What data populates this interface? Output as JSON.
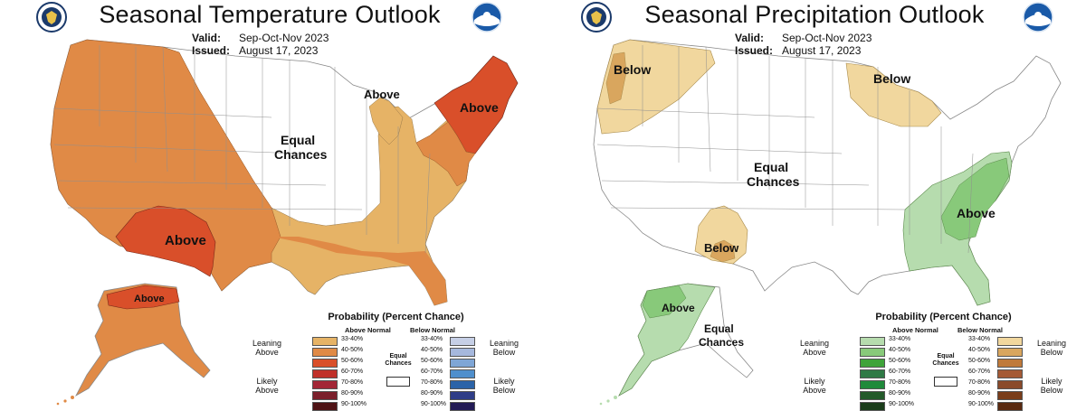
{
  "panels": [
    {
      "id": "temperature",
      "title": "Seasonal Temperature Outlook",
      "valid_label": "Valid:",
      "valid_value": "Sep-Oct-Nov 2023",
      "issued_label": "Issued:",
      "issued_value": "August 17, 2023",
      "regions": [
        {
          "name": "west-above",
          "category": "above-normal",
          "probability": "40-50%"
        },
        {
          "name": "southwest-above",
          "category": "above-normal",
          "probability": "50-60%"
        },
        {
          "name": "northeast-above",
          "category": "above-normal",
          "probability": "50-60%"
        },
        {
          "name": "east-above",
          "category": "above-normal",
          "probability": "33-40%"
        },
        {
          "name": "alaska-above",
          "category": "above-normal",
          "probability": "40-50%"
        }
      ],
      "labels": [
        "Above",
        "Equal\nChances",
        "Above",
        "Above",
        "Above"
      ]
    },
    {
      "id": "precipitation",
      "title": "Seasonal Precipitation Outlook",
      "valid_label": "Valid:",
      "valid_value": "Sep-Oct-Nov 2023",
      "issued_label": "Issued:",
      "issued_value": "August 17, 2023",
      "regions": [
        {
          "name": "northwest-below",
          "category": "below-normal",
          "probability": "33-40%"
        },
        {
          "name": "great-lakes-below",
          "category": "below-normal",
          "probability": "33-40%"
        },
        {
          "name": "southwest-below",
          "category": "below-normal",
          "probability": "33-40%"
        },
        {
          "name": "southeast-above",
          "category": "above-normal",
          "probability": "33-40%"
        },
        {
          "name": "alaska-above",
          "category": "above-normal",
          "probability": "33-40%"
        }
      ]
    }
  ],
  "temperature_labels": {
    "above_sw": "Above",
    "equal_1": "Equal",
    "equal_2": "Chances",
    "above_lakes": "Above",
    "above_ne": "Above",
    "above_ak": "Above"
  },
  "precip_labels": {
    "below_nw": "Below",
    "below_lakes": "Below",
    "equal_1": "Equal",
    "equal_2": "Chances",
    "below_sw": "Below",
    "above_se": "Above",
    "above_ak": "Above",
    "equal_ak_1": "Equal",
    "equal_ak_2": "Chances"
  },
  "temp_legend": {
    "title": "Probability (Percent Chance)",
    "above_head": "Above Normal",
    "below_head": "Below Normal",
    "leaning_above": [
      "Leaning",
      "Above"
    ],
    "likely_above": [
      "Likely",
      "Above"
    ],
    "leaning_below": [
      "Leaning",
      "Below"
    ],
    "likely_below": [
      "Likely",
      "Below"
    ],
    "equal_chances": [
      "Equal",
      "Chances"
    ],
    "percents": [
      "33-40%",
      "40-50%",
      "50-60%",
      "60-70%",
      "70-80%",
      "80-90%",
      "90-100%"
    ],
    "above_colors": [
      "#e6b366",
      "#e08a46",
      "#d94f2a",
      "#c0302a",
      "#a32636",
      "#7b1f2b",
      "#4e1214"
    ],
    "below_colors": [
      "#c6cfe6",
      "#a6b8dd",
      "#7fa6d6",
      "#4f8fcc",
      "#2b63a8",
      "#2f3d87",
      "#221a55"
    ]
  },
  "precip_legend": {
    "title": "Probability (Percent Chance)",
    "above_head": "Above Normal",
    "below_head": "Below Normal",
    "leaning_above": [
      "Leaning",
      "Above"
    ],
    "likely_above": [
      "Likely",
      "Above"
    ],
    "leaning_below": [
      "Leaning",
      "Below"
    ],
    "likely_below": [
      "Likely",
      "Below"
    ],
    "equal_chances": [
      "Equal",
      "Chances"
    ],
    "percents": [
      "33-40%",
      "40-50%",
      "50-60%",
      "60-70%",
      "70-80%",
      "80-90%",
      "90-100%"
    ],
    "above_colors": [
      "#b6dcae",
      "#88c97a",
      "#3fa33a",
      "#2f7a46",
      "#1f8a3a",
      "#235a2a",
      "#1a3d1a"
    ],
    "below_colors": [
      "#f1d79e",
      "#d9a65e",
      "#c07a3a",
      "#a55a35",
      "#8a4a2a",
      "#7a3d1a",
      "#5a2a10"
    ]
  },
  "colors": {
    "temp_33_40": "#e6b366",
    "temp_40_50": "#e08a46",
    "temp_50_60": "#d94f2a",
    "precip_above_33_40": "#b6dcae",
    "precip_above_40_50": "#88c97a",
    "precip_below_33_40": "#f1d79e",
    "precip_below_40_50": "#d9a65e",
    "border": "#9a9a9a"
  },
  "logos": [
    "noaa-seal-left",
    "noaa-logo-right"
  ]
}
